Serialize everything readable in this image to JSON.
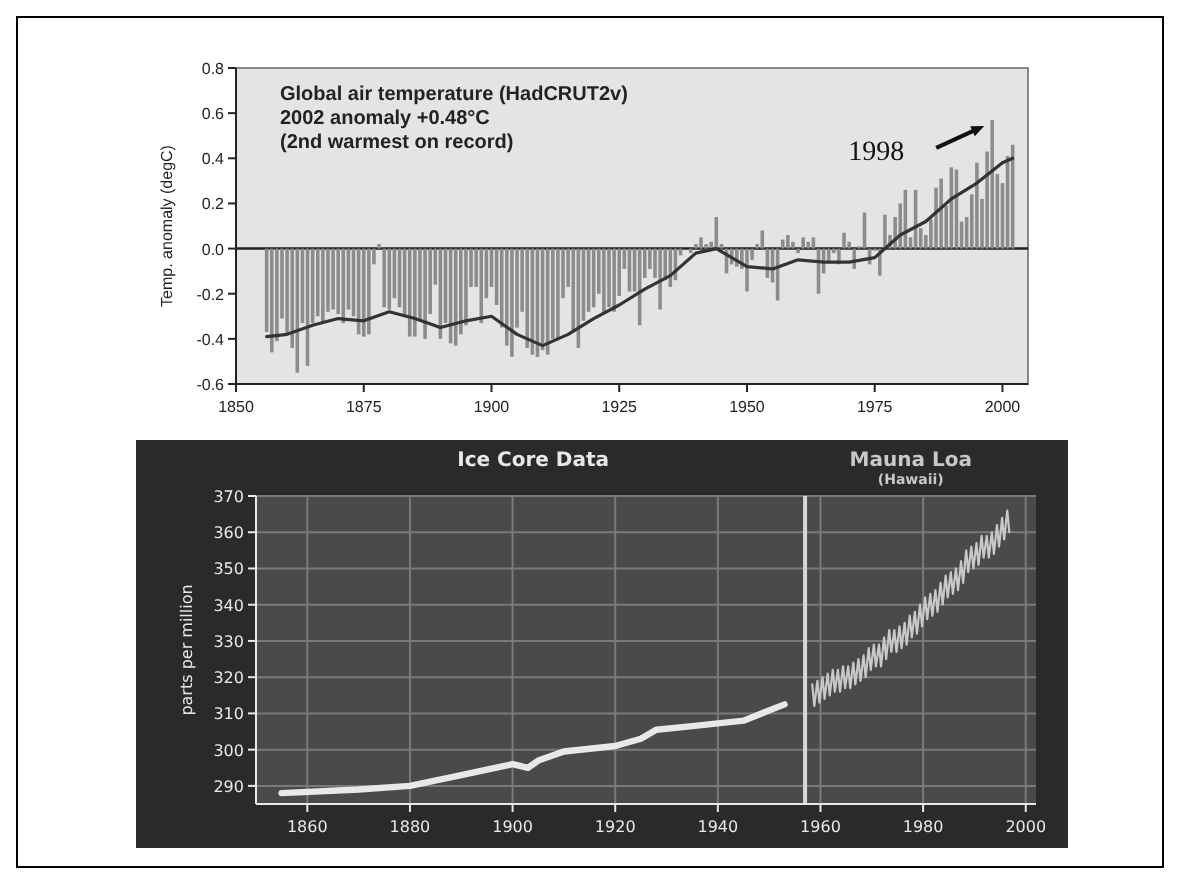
{
  "chart_data": [
    {
      "type": "bar",
      "title": "Global air temperature (HadCRUT2v)",
      "subtitle": "2002 anomaly +0.48°C",
      "ylabel": "Temp. anomaly (degC)",
      "annotations": [
        "(2nd warmest on record)",
        {
          "text": "1998",
          "x": 1998,
          "y": 0.57
        }
      ],
      "xlim": [
        1850,
        2005
      ],
      "xticks": [
        1850,
        1875,
        1900,
        1925,
        1950,
        1975,
        2000
      ],
      "ylim": [
        -0.6,
        0.8
      ],
      "yticks": [
        -0.6,
        -0.4,
        -0.2,
        {
          "value": 0,
          "label": "0.0"
        },
        0.2,
        0.4,
        0.6,
        0.8
      ],
      "series": [
        {
          "type": "bar",
          "color": "#8c8c8c",
          "x": [
            1856,
            1857,
            1858,
            1859,
            1860,
            1861,
            1862,
            1863,
            1864,
            1865,
            1866,
            1867,
            1868,
            1869,
            1870,
            1871,
            1872,
            1873,
            1874,
            1875,
            1876,
            1877,
            1878,
            1879,
            1880,
            1881,
            1882,
            1883,
            1884,
            1885,
            1886,
            1887,
            1888,
            1889,
            1890,
            1891,
            1892,
            1893,
            1894,
            1895,
            1896,
            1897,
            1898,
            1899,
            1900,
            1901,
            1902,
            1903,
            1904,
            1905,
            1906,
            1907,
            1908,
            1909,
            1910,
            1911,
            1912,
            1913,
            1914,
            1915,
            1916,
            1917,
            1918,
            1919,
            1920,
            1921,
            1922,
            1923,
            1924,
            1925,
            1926,
            1927,
            1928,
            1929,
            1930,
            1931,
            1932,
            1933,
            1934,
            1935,
            1936,
            1937,
            1938,
            1939,
            1940,
            1941,
            1942,
            1943,
            1944,
            1945,
            1946,
            1947,
            1948,
            1949,
            1950,
            1951,
            1952,
            1953,
            1954,
            1955,
            1956,
            1957,
            1958,
            1959,
            1960,
            1961,
            1962,
            1963,
            1964,
            1965,
            1966,
            1967,
            1968,
            1969,
            1970,
            1971,
            1972,
            1973,
            1974,
            1975,
            1976,
            1977,
            1978,
            1979,
            1980,
            1981,
            1982,
            1983,
            1984,
            1985,
            1986,
            1987,
            1988,
            1989,
            1990,
            1991,
            1992,
            1993,
            1994,
            1995,
            1996,
            1997,
            1998,
            1999,
            2000,
            2001,
            2002
          ],
          "values": [
            -0.37,
            -0.46,
            -0.41,
            -0.31,
            -0.38,
            -0.44,
            -0.55,
            -0.33,
            -0.52,
            -0.33,
            -0.3,
            -0.33,
            -0.28,
            -0.27,
            -0.29,
            -0.33,
            -0.27,
            -0.3,
            -0.38,
            -0.39,
            -0.38,
            -0.07,
            0.02,
            -0.26,
            -0.27,
            -0.22,
            -0.26,
            -0.3,
            -0.39,
            -0.39,
            -0.32,
            -0.4,
            -0.29,
            -0.16,
            -0.4,
            -0.33,
            -0.42,
            -0.43,
            -0.38,
            -0.34,
            -0.17,
            -0.17,
            -0.33,
            -0.22,
            -0.17,
            -0.25,
            -0.35,
            -0.43,
            -0.48,
            -0.35,
            -0.28,
            -0.44,
            -0.47,
            -0.48,
            -0.45,
            -0.47,
            -0.4,
            -0.4,
            -0.22,
            -0.17,
            -0.37,
            -0.44,
            -0.32,
            -0.28,
            -0.26,
            -0.2,
            -0.29,
            -0.26,
            -0.28,
            -0.21,
            -0.09,
            -0.19,
            -0.19,
            -0.34,
            -0.13,
            -0.09,
            -0.13,
            -0.27,
            -0.14,
            -0.17,
            -0.14,
            -0.03,
            0,
            -0.02,
            0.02,
            0.05,
            0.02,
            0.03,
            0.14,
            0.02,
            -0.11,
            -0.07,
            -0.08,
            -0.09,
            -0.19,
            -0.05,
            0.02,
            0.08,
            -0.13,
            -0.15,
            -0.23,
            0.04,
            0.06,
            0.03,
            -0.02,
            0.05,
            0.03,
            0.05,
            -0.2,
            -0.11,
            -0.06,
            -0.02,
            -0.07,
            0.07,
            0.03,
            -0.09,
            0.01,
            0.16,
            -0.07,
            -0.01,
            -0.12,
            0.15,
            0.06,
            0.14,
            0.2,
            0.26,
            0.05,
            0.26,
            0.09,
            0.06,
            0.13,
            0.27,
            0.31,
            0.19,
            0.36,
            0.35,
            0.12,
            0.14,
            0.24,
            0.38,
            0.22,
            0.43,
            0.57,
            0.33,
            0.29,
            0.41,
            0.46
          ]
        },
        {
          "type": "line",
          "color": "#333333",
          "x": [
            1856,
            1860,
            1865,
            1870,
            1875,
            1880,
            1885,
            1890,
            1895,
            1900,
            1905,
            1910,
            1915,
            1920,
            1925,
            1930,
            1935,
            1940,
            1944,
            1950,
            1955,
            1960,
            1965,
            1970,
            1975,
            1980,
            1985,
            1990,
            1995,
            2000,
            2002
          ],
          "values": [
            -0.39,
            -0.38,
            -0.34,
            -0.31,
            -0.32,
            -0.28,
            -0.31,
            -0.35,
            -0.32,
            -0.3,
            -0.38,
            -0.43,
            -0.38,
            -0.31,
            -0.25,
            -0.18,
            -0.12,
            -0.02,
            0,
            -0.08,
            -0.09,
            -0.05,
            -0.06,
            -0.06,
            -0.04,
            0.06,
            0.12,
            0.22,
            0.29,
            0.38,
            0.4
          ]
        }
      ]
    },
    {
      "type": "line",
      "ylabel": "parts per million",
      "grid": true,
      "xlim": [
        1850,
        2002
      ],
      "xticks": [
        1860,
        1880,
        1900,
        1920,
        1940,
        1960,
        1980,
        2000
      ],
      "ylim": [
        285,
        370
      ],
      "yticks": [
        290,
        300,
        310,
        320,
        330,
        340,
        350,
        360,
        370
      ],
      "ref_lines": [
        {
          "axis": "x",
          "value": 1957,
          "color": "#d8d8d8"
        }
      ],
      "series": [
        {
          "name": "Ice Core Data",
          "color": "#e8e8e8",
          "x": [
            1855,
            1870,
            1880,
            1890,
            1900,
            1903,
            1905,
            1910,
            1920,
            1925,
            1928,
            1935,
            1945,
            1953
          ],
          "values": [
            288,
            289,
            290,
            293,
            296,
            295,
            297,
            299.5,
            301,
            303,
            305.5,
            306.5,
            308,
            312.5
          ]
        },
        {
          "name": "Mauna Loa\n(Hawaii)",
          "color": "#c8c8c8",
          "x": [
            1958.4,
            1958.8,
            1959.4,
            1959.8,
            1960.4,
            1960.8,
            1961.4,
            1961.8,
            1962.4,
            1962.8,
            1963.4,
            1963.8,
            1964.4,
            1964.8,
            1965.4,
            1965.8,
            1966.4,
            1966.8,
            1967.4,
            1967.8,
            1968.4,
            1968.8,
            1969.4,
            1969.8,
            1970.4,
            1970.8,
            1971.4,
            1971.8,
            1972.4,
            1972.8,
            1973.4,
            1973.8,
            1974.4,
            1974.8,
            1975.4,
            1975.8,
            1976.4,
            1976.8,
            1977.4,
            1977.8,
            1978.4,
            1978.8,
            1979.4,
            1979.8,
            1980.4,
            1980.8,
            1981.4,
            1981.8,
            1982.4,
            1982.8,
            1983.4,
            1983.8,
            1984.4,
            1984.8,
            1985.4,
            1985.8,
            1986.4,
            1986.8,
            1987.4,
            1987.8,
            1988.4,
            1988.8,
            1989.4,
            1989.8,
            1990.4,
            1990.8,
            1991.4,
            1991.8,
            1992.4,
            1992.8,
            1993.4,
            1993.8,
            1994.4,
            1994.8,
            1995.4,
            1995.8,
            1996.4,
            1996.8
          ],
          "values": [
            318,
            312,
            319,
            313,
            320,
            314,
            321,
            315,
            322,
            316,
            322,
            316,
            323,
            317,
            323,
            317,
            324,
            318,
            325,
            319,
            326,
            320,
            328,
            322,
            329,
            323,
            329,
            323,
            331,
            325,
            333,
            327,
            333,
            327,
            334,
            328,
            335,
            329,
            337,
            331,
            338,
            332,
            340,
            334,
            342,
            336,
            343,
            337,
            344,
            338,
            346,
            340,
            348,
            342,
            349,
            343,
            350,
            344,
            352,
            346,
            355,
            349,
            356,
            350,
            357,
            351,
            359,
            353,
            359,
            353,
            360,
            354,
            362,
            356,
            364,
            358,
            366,
            360
          ]
        }
      ]
    }
  ]
}
